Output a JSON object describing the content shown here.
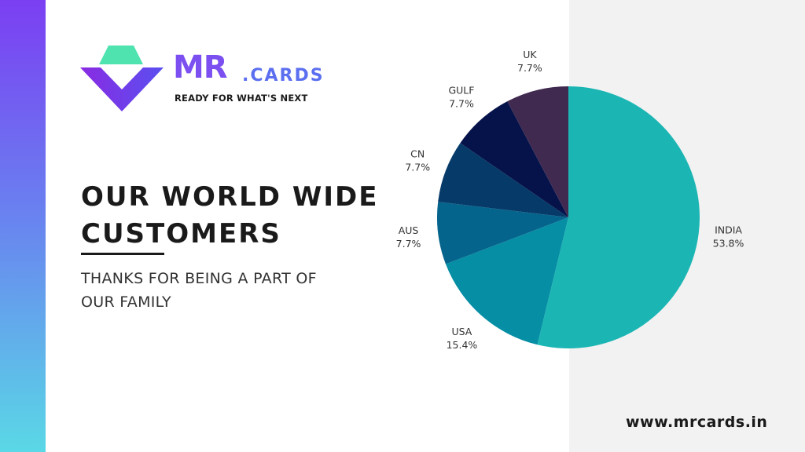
{
  "logo": {
    "brand_big": "MR",
    "brand_small": ".CARDS",
    "tagline": "READY FOR WHAT'S NEXT"
  },
  "headline": {
    "line1": "OUR WORLD WIDE",
    "line2": "CUSTOMERS"
  },
  "subtitle": {
    "line1": "THANKS FOR BEING A PART OF",
    "line2": "OUR FAMILY"
  },
  "website": "www.mrcards.in",
  "colors": {
    "left_bar_top": "#7b3ff2",
    "left_bar_bottom": "#5ad8e6",
    "right_panel": "#f2f2f2"
  },
  "chart_data": {
    "type": "pie",
    "title": "",
    "slices": [
      {
        "label": "INDIA",
        "value": 53.8,
        "display": "53.8%",
        "color": "#1bb6b4"
      },
      {
        "label": "USA",
        "value": 15.4,
        "display": "15.4%",
        "color": "#068ea5"
      },
      {
        "label": "AUS",
        "value": 7.7,
        "display": "7.7%",
        "color": "#05648c"
      },
      {
        "label": "CN",
        "value": 7.7,
        "display": "7.7%",
        "color": "#063b69"
      },
      {
        "label": "GULF",
        "value": 7.7,
        "display": "7.7%",
        "color": "#06134a"
      },
      {
        "label": "UK",
        "value": 7.7,
        "display": "7.7%",
        "color": "#402a50"
      }
    ],
    "start": "12 o'clock",
    "direction": "clockwise"
  }
}
